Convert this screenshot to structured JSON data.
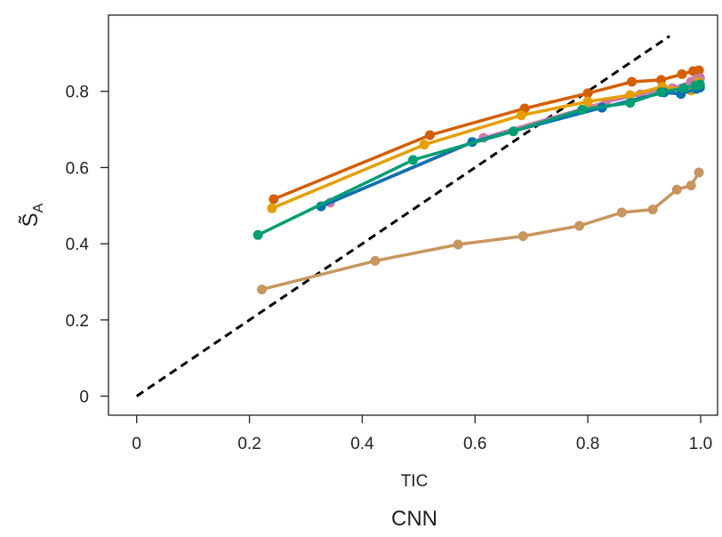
{
  "chart_data": {
    "type": "line",
    "title": "CNN",
    "xlabel": "TIC",
    "ylabel": "S̃",
    "ylabel_sub": "A",
    "xlim": [
      -0.05,
      1.03
    ],
    "ylim": [
      -0.05,
      1.0
    ],
    "xticks": [
      0,
      0.2,
      0.4,
      0.6,
      0.8,
      1.0
    ],
    "xtick_labels": [
      "0",
      "0.2",
      "0.4",
      "0.6",
      "0.8",
      "1.0"
    ],
    "yticks": [
      0,
      0.2,
      0.4,
      0.6,
      0.8
    ],
    "ytick_labels": [
      "0",
      "0.2",
      "0.4",
      "0.6",
      "0.8"
    ],
    "grid": false,
    "legend": "none",
    "reference_line": {
      "x": [
        0,
        0.945
      ],
      "y": [
        0,
        0.945
      ],
      "style": "dashed",
      "color": "#000000"
    },
    "series": [
      {
        "color": "#d55e00",
        "x": [
          0.243,
          0.52,
          0.688,
          0.8,
          0.878,
          0.93,
          0.967,
          0.987,
          0.997
        ],
        "y": [
          0.517,
          0.685,
          0.755,
          0.795,
          0.825,
          0.83,
          0.845,
          0.853,
          0.855
        ]
      },
      {
        "color": "#cc79a7",
        "x": [
          0.343,
          0.615,
          0.832,
          0.893,
          0.95,
          0.983,
          0.993,
          0.999
        ],
        "y": [
          0.508,
          0.678,
          0.772,
          0.792,
          0.808,
          0.825,
          0.832,
          0.835
        ]
      },
      {
        "color": "#e69f00",
        "x": [
          0.24,
          0.51,
          0.682,
          0.8,
          0.875,
          0.932,
          0.983,
          0.996
        ],
        "y": [
          0.493,
          0.66,
          0.737,
          0.773,
          0.79,
          0.812,
          0.802,
          0.824
        ]
      },
      {
        "color": "#0072b2",
        "x": [
          0.327,
          0.595,
          0.825,
          0.935,
          0.965,
          0.992,
          0.999
        ],
        "y": [
          0.498,
          0.667,
          0.757,
          0.797,
          0.793,
          0.806,
          0.81
        ]
      },
      {
        "color": "#009e73",
        "x": [
          0.215,
          0.49,
          0.668,
          0.79,
          0.875,
          0.93,
          0.97,
          0.991,
          0.999
        ],
        "y": [
          0.423,
          0.62,
          0.695,
          0.752,
          0.77,
          0.798,
          0.808,
          0.815,
          0.818
        ]
      },
      {
        "color": "#c8955c",
        "x": [
          0.222,
          0.423,
          0.57,
          0.685,
          0.785,
          0.86,
          0.915,
          0.958,
          0.983,
          0.997
        ],
        "y": [
          0.28,
          0.355,
          0.398,
          0.42,
          0.447,
          0.482,
          0.49,
          0.542,
          0.553,
          0.587
        ]
      }
    ]
  }
}
